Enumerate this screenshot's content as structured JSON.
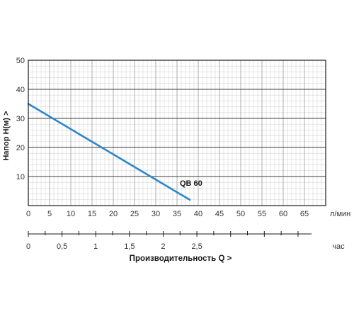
{
  "chart_data": {
    "type": "line",
    "ylabel": "Напор   Н(м)  >",
    "ylim": [
      0,
      50
    ],
    "y_ticks": [
      "10",
      "20",
      "30",
      "40",
      "50"
    ],
    "x_ticks": [
      "0",
      "5",
      "10",
      "15",
      "20",
      "25",
      "30",
      "35",
      "40",
      "45",
      "50",
      "55",
      "60",
      "65"
    ],
    "x_unit": "л/мин",
    "xlim": [
      0,
      70
    ],
    "x2_ticks": [
      "0",
      "0,5",
      "1",
      "1,5",
      "2",
      "2,5"
    ],
    "x2_unit": "час",
    "x2_range": [
      0,
      4.2
    ],
    "xlabel": "Производительность Q  >",
    "grid": true,
    "series": [
      {
        "name": "QB 60",
        "x": [
          0,
          38
        ],
        "y": [
          35,
          2
        ]
      }
    ],
    "colors": {
      "line": "#2e86c8",
      "grid": "#9a9a9a",
      "frame": "#1a1a1a"
    }
  }
}
